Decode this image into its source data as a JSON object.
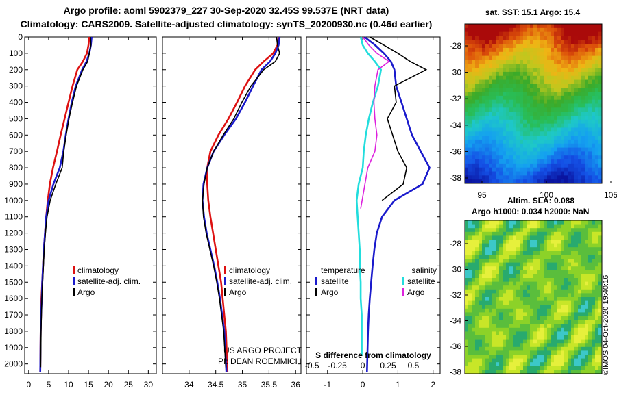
{
  "header": {
    "line1": "Argo profile: aoml 5902379_227 30-Sep-2020 32.45S 99.537E (NRT data)",
    "line2": "Climatology: CARS2009. Satellite-adjusted climatology: synTS_20200930.nc (0.46d earlier)"
  },
  "watermark": "©IMOS 04-Oct-2020 19:40:16",
  "colors": {
    "climatology": "#dd1111",
    "satellite": "#1a1acc",
    "argo": "#000000",
    "sat_salinity": "#22dddd",
    "argo_salinity": "#dd22dd"
  },
  "chart_data": [
    {
      "type": "line",
      "id": "temperature",
      "ylim": [
        2060,
        0
      ],
      "xlim": [
        -1,
        32
      ],
      "y_ticks": [
        0,
        100,
        200,
        300,
        400,
        500,
        600,
        700,
        800,
        900,
        1000,
        1100,
        1200,
        1300,
        1400,
        1500,
        1600,
        1700,
        1800,
        1900,
        2000
      ],
      "x_ticks": [
        0,
        5,
        10,
        15,
        20,
        25,
        30
      ],
      "legend": [
        "climatology",
        "satellite-adj. clim.",
        "Argo"
      ],
      "series": [
        {
          "name": "climatology",
          "color": "#dd1111",
          "x": [
            15.2,
            15.0,
            14.6,
            13.6,
            12.2,
            11.0,
            10.0,
            9.0,
            8.0,
            7.1,
            6.1,
            5.3,
            4.8,
            4.4,
            4.1,
            3.8,
            3.6,
            3.4,
            3.2,
            3.1,
            3.0,
            2.9
          ],
          "y": [
            0,
            50,
            100,
            150,
            200,
            300,
            400,
            500,
            600,
            700,
            800,
            900,
            1000,
            1100,
            1200,
            1300,
            1400,
            1500,
            1600,
            1700,
            1800,
            2050
          ]
        },
        {
          "name": "satellite-adj. clim.",
          "color": "#1a1acc",
          "x": [
            15.8,
            15.6,
            15.2,
            14.5,
            13.4,
            11.8,
            10.8,
            10.0,
            9.3,
            8.7,
            7.8,
            6.2,
            5.0,
            4.4,
            4.1,
            3.8,
            3.6,
            3.4,
            3.3,
            3.1,
            3.0,
            2.9
          ],
          "y": [
            0,
            50,
            100,
            150,
            200,
            300,
            400,
            500,
            600,
            700,
            800,
            900,
            1000,
            1100,
            1200,
            1300,
            1400,
            1500,
            1600,
            1700,
            1800,
            2050
          ]
        },
        {
          "name": "Argo",
          "color": "#000000",
          "x": [
            15.5,
            15.6,
            15.2,
            14.8,
            13.6,
            12.0,
            11.0,
            10.1,
            9.4,
            8.8,
            8.4,
            6.8,
            5.4,
            4.6,
            4.2,
            3.9,
            3.7,
            3.5,
            3.3,
            3.2,
            3.1,
            3.0
          ],
          "y": [
            0,
            50,
            100,
            150,
            200,
            300,
            400,
            500,
            600,
            700,
            800,
            900,
            1000,
            1100,
            1200,
            1300,
            1400,
            1500,
            1600,
            1700,
            1800,
            2020
          ]
        }
      ]
    },
    {
      "type": "line",
      "id": "salinity",
      "ylim": [
        2060,
        0
      ],
      "xlim": [
        33.5,
        36.1
      ],
      "x_ticks": [
        34,
        34.5,
        35,
        35.5,
        36
      ],
      "legend": [
        "climatology",
        "satellite-adj. clim.",
        "Argo"
      ],
      "annotation": [
        "US ARGO PROJECT",
        "PI: DEAN ROEMMICH"
      ],
      "series": [
        {
          "name": "climatology",
          "color": "#dd1111",
          "x": [
            35.68,
            35.66,
            35.58,
            35.4,
            35.24,
            35.05,
            34.9,
            34.74,
            34.55,
            34.4,
            34.34,
            34.34,
            34.36,
            34.4,
            34.45,
            34.5,
            34.55,
            34.6,
            34.63,
            34.66,
            34.69,
            34.72
          ],
          "y": [
            0,
            50,
            100,
            150,
            200,
            300,
            400,
            500,
            600,
            700,
            800,
            900,
            1000,
            1100,
            1200,
            1300,
            1400,
            1500,
            1600,
            1700,
            1800,
            2050
          ]
        },
        {
          "name": "satellite-adj. clim.",
          "color": "#1a1acc",
          "x": [
            35.7,
            35.68,
            35.62,
            35.52,
            35.36,
            35.2,
            35.05,
            34.88,
            34.66,
            34.46,
            34.34,
            34.27,
            34.25,
            34.28,
            34.33,
            34.4,
            34.47,
            34.53,
            34.58,
            34.62,
            34.66,
            34.7
          ],
          "y": [
            0,
            50,
            100,
            150,
            200,
            300,
            400,
            500,
            600,
            700,
            800,
            900,
            1000,
            1100,
            1200,
            1300,
            1400,
            1500,
            1600,
            1700,
            1800,
            2050
          ]
        },
        {
          "name": "Argo",
          "color": "#000000",
          "x": [
            35.64,
            35.66,
            35.7,
            35.62,
            35.4,
            35.16,
            34.99,
            34.84,
            34.64,
            34.46,
            34.34,
            34.28,
            34.25,
            34.27,
            34.32,
            34.39,
            34.46,
            34.52,
            34.57,
            34.61,
            34.65,
            34.69
          ],
          "y": [
            0,
            50,
            100,
            150,
            200,
            300,
            400,
            500,
            600,
            700,
            800,
            900,
            1000,
            1100,
            1200,
            1300,
            1400,
            1500,
            1600,
            1700,
            1800,
            2020
          ]
        }
      ]
    },
    {
      "type": "line",
      "id": "difference",
      "ylim": [
        2060,
        0
      ],
      "xlim": [
        -1.6,
        2.2
      ],
      "x_ticks_temperature": [
        -1,
        0,
        1,
        2
      ],
      "x_ticks_salinity": [
        -0.5,
        -0.25,
        0,
        0.25,
        0.5
      ],
      "xlabel": "S difference from climatology",
      "legend_temperature": [
        "temperature",
        "satellite",
        "Argo"
      ],
      "legend_salinity": [
        "salinity",
        "satellite",
        "Argo"
      ],
      "series": [
        {
          "name": "temperature satellite",
          "color": "#1a1acc",
          "x": [
            0.05,
            0.35,
            0.6,
            0.8,
            0.9,
            0.95,
            1.1,
            1.25,
            1.4,
            1.65,
            1.9,
            1.7,
            0.9,
            0.55,
            0.4,
            0.33,
            0.28,
            0.24,
            0.2,
            0.17,
            0.15,
            0.12
          ],
          "y": [
            0,
            50,
            100,
            150,
            200,
            300,
            400,
            500,
            600,
            700,
            800,
            900,
            1000,
            1100,
            1200,
            1300,
            1400,
            1500,
            1600,
            1700,
            1800,
            2050
          ]
        },
        {
          "name": "temperature Argo",
          "color": "#000000",
          "x": [
            0.2,
            0.6,
            1.0,
            1.35,
            1.8,
            0.9,
            0.95,
            0.7,
            0.85,
            1.0,
            1.25,
            1.15,
            0.55
          ],
          "y": [
            0,
            50,
            100,
            150,
            200,
            300,
            400,
            500,
            600,
            700,
            800,
            900,
            1000
          ]
        },
        {
          "name": "salinity satellite",
          "color": "#22dddd",
          "x": [
            -0.02,
            0.0,
            0.05,
            0.12,
            0.18,
            0.15,
            0.1,
            0.06,
            0.03,
            0.01,
            0.0,
            -0.04,
            -0.06,
            -0.05,
            -0.04,
            -0.03,
            -0.03,
            -0.02,
            -0.02,
            -0.01,
            -0.01,
            -0.01
          ],
          "y": [
            0,
            50,
            100,
            150,
            200,
            300,
            400,
            500,
            600,
            700,
            800,
            900,
            1000,
            1100,
            1200,
            1300,
            1400,
            1500,
            1600,
            1700,
            1800,
            1950
          ]
        },
        {
          "name": "salinity Argo",
          "color": "#dd22dd",
          "x": [
            0.0,
            0.06,
            0.14,
            0.26,
            0.15,
            0.12,
            0.11,
            0.12,
            0.14,
            0.12,
            0.05,
            -0.02
          ],
          "y": [
            0,
            50,
            100,
            150,
            200,
            300,
            400,
            500,
            600,
            700,
            800,
            1050
          ]
        }
      ]
    },
    {
      "type": "heatmap",
      "id": "sst_map",
      "title": "sat. SST: 15.1 Argo: 15.4",
      "x_ticks": [
        95,
        100,
        105
      ],
      "y_ticks": [
        -28,
        -30,
        -32,
        -34,
        -36,
        -38
      ]
    },
    {
      "type": "heatmap",
      "id": "sla_map",
      "title_line1": "Altim. SLA: 0.088",
      "title_line2": "Argo h1000: 0.034 h2000: NaN",
      "y_ticks": [
        -28,
        -30,
        -32,
        -34,
        -36,
        -38
      ]
    }
  ]
}
